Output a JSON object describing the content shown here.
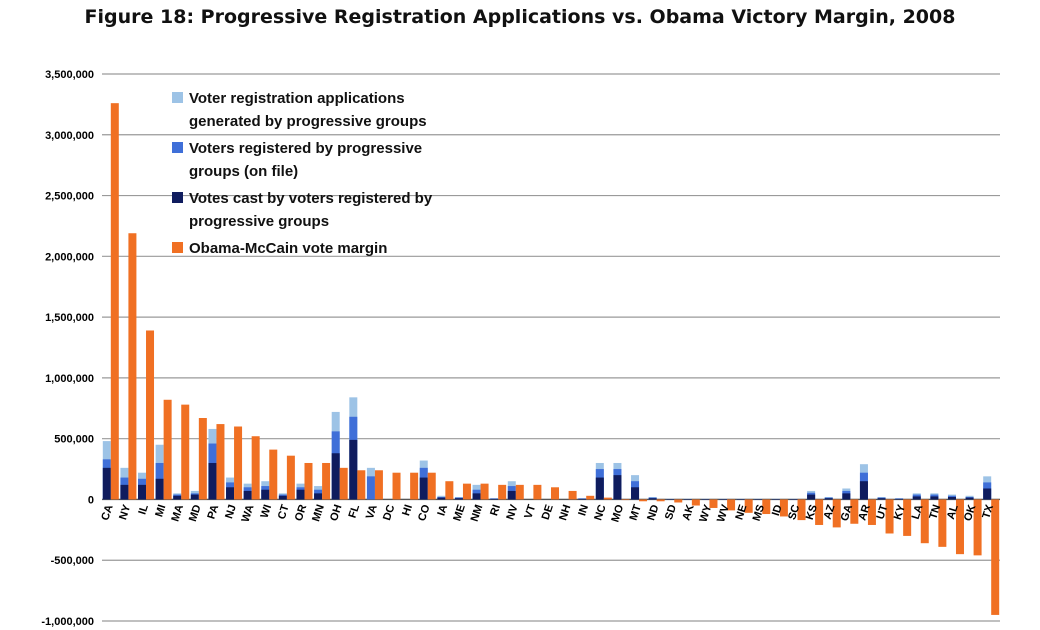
{
  "chart_data": {
    "type": "bar",
    "title": "Figure 18: Progressive Registration Applications vs. Obama Victory Margin, 2008",
    "xlabel": "",
    "ylabel": "",
    "ylim": [
      -1000000,
      3500000
    ],
    "yticks": [
      -1000000,
      -500000,
      0,
      500000,
      1000000,
      1500000,
      2000000,
      2500000,
      3000000,
      3500000
    ],
    "ytick_labels": [
      "-1,000,000",
      "-500,000",
      "0",
      "500,000",
      "1,000,000",
      "1,500,000",
      "2,000,000",
      "2,500,000",
      "3,000,000",
      "3,500,000"
    ],
    "grid": true,
    "legend_position": "top-left",
    "categories": [
      "CA",
      "NY",
      "IL",
      "MI",
      "MA",
      "MD",
      "PA",
      "NJ",
      "WA",
      "WI",
      "CT",
      "OR",
      "MN",
      "OH",
      "FL",
      "VA",
      "DC",
      "HI",
      "CO",
      "IA",
      "ME",
      "NM",
      "RI",
      "NV",
      "VT",
      "DE",
      "NH",
      "IN",
      "NC",
      "MO",
      "MT",
      "ND",
      "SD",
      "AK",
      "WY",
      "WV",
      "NE",
      "MS",
      "ID",
      "SC",
      "KS",
      "AZ",
      "GA",
      "AR",
      "UT",
      "KY",
      "LA",
      "TN",
      "AL",
      "OK",
      "TX"
    ],
    "series": [
      {
        "name": "Voter registration applications generated by progressive groups",
        "color": "#9dc3e6",
        "stack": "reg",
        "values": [
          480000,
          260000,
          220000,
          450000,
          50000,
          70000,
          580000,
          180000,
          130000,
          150000,
          50000,
          130000,
          110000,
          720000,
          840000,
          260000,
          0,
          0,
          320000,
          30000,
          20000,
          120000,
          10000,
          150000,
          0,
          0,
          0,
          10000,
          300000,
          300000,
          200000,
          20000,
          5000,
          5000,
          5000,
          5000,
          5000,
          5000,
          5000,
          5000,
          70000,
          20000,
          90000,
          290000,
          20000,
          10000,
          50000,
          50000,
          40000,
          30000,
          190000
        ]
      },
      {
        "name": "Voters registered by progressive groups (on file)",
        "color": "#3f6fd8",
        "stack": "reg",
        "values": [
          330000,
          180000,
          170000,
          300000,
          40000,
          50000,
          460000,
          140000,
          100000,
          110000,
          40000,
          100000,
          80000,
          560000,
          680000,
          190000,
          0,
          0,
          260000,
          20000,
          15000,
          80000,
          8000,
          110000,
          0,
          0,
          0,
          8000,
          250000,
          250000,
          150000,
          15000,
          4000,
          4000,
          4000,
          4000,
          4000,
          4000,
          4000,
          4000,
          55000,
          15000,
          70000,
          220000,
          15000,
          8000,
          40000,
          40000,
          30000,
          20000,
          140000
        ]
      },
      {
        "name": "Votes cast by voters registered by progressive groups",
        "color": "#0f1c5e",
        "stack": "reg",
        "values": [
          260000,
          120000,
          120000,
          170000,
          30000,
          40000,
          300000,
          100000,
          70000,
          80000,
          30000,
          80000,
          50000,
          380000,
          490000,
          0,
          0,
          0,
          180000,
          15000,
          10000,
          50000,
          5000,
          70000,
          0,
          0,
          0,
          5000,
          180000,
          200000,
          100000,
          10000,
          3000,
          3000,
          3000,
          3000,
          3000,
          3000,
          3000,
          3000,
          40000,
          10000,
          50000,
          150000,
          10000,
          5000,
          25000,
          25000,
          20000,
          15000,
          90000
        ]
      },
      {
        "name": "Obama-McCain vote margin",
        "color": "#f07023",
        "stack": "margin",
        "values": [
          3260000,
          2190000,
          1390000,
          820000,
          780000,
          670000,
          620000,
          600000,
          520000,
          410000,
          360000,
          300000,
          300000,
          260000,
          240000,
          240000,
          220000,
          220000,
          220000,
          150000,
          130000,
          130000,
          120000,
          120000,
          120000,
          100000,
          70000,
          30000,
          15000,
          -5000,
          -15000,
          -15000,
          -25000,
          -50000,
          -70000,
          -90000,
          -110000,
          -120000,
          -140000,
          -170000,
          -210000,
          -230000,
          -200000,
          -210000,
          -280000,
          -300000,
          -360000,
          -390000,
          -450000,
          -460000,
          -950000
        ]
      }
    ]
  }
}
